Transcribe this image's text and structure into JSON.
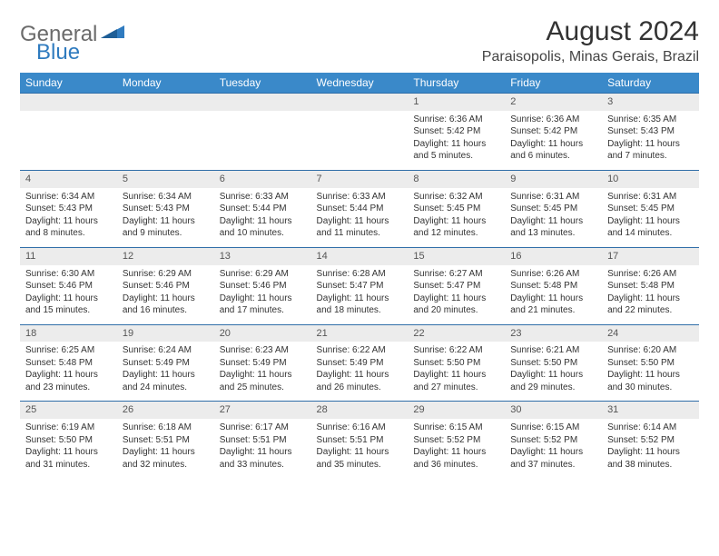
{
  "logo": {
    "word1": "General",
    "word2": "Blue",
    "color1": "#6b6b6b",
    "color2": "#2f7bbf"
  },
  "title": "August 2024",
  "location": "Paraisopolis, Minas Gerais, Brazil",
  "header_bg": "#3a89c9",
  "header_fg": "#ffffff",
  "daynum_bg": "#ececec",
  "row_border": "#2f6ea8",
  "weekdays": [
    "Sunday",
    "Monday",
    "Tuesday",
    "Wednesday",
    "Thursday",
    "Friday",
    "Saturday"
  ],
  "weeks": [
    [
      null,
      null,
      null,
      null,
      {
        "n": "1",
        "sr": "6:36 AM",
        "ss": "5:42 PM",
        "dl": "11 hours and 5 minutes."
      },
      {
        "n": "2",
        "sr": "6:36 AM",
        "ss": "5:42 PM",
        "dl": "11 hours and 6 minutes."
      },
      {
        "n": "3",
        "sr": "6:35 AM",
        "ss": "5:43 PM",
        "dl": "11 hours and 7 minutes."
      }
    ],
    [
      {
        "n": "4",
        "sr": "6:34 AM",
        "ss": "5:43 PM",
        "dl": "11 hours and 8 minutes."
      },
      {
        "n": "5",
        "sr": "6:34 AM",
        "ss": "5:43 PM",
        "dl": "11 hours and 9 minutes."
      },
      {
        "n": "6",
        "sr": "6:33 AM",
        "ss": "5:44 PM",
        "dl": "11 hours and 10 minutes."
      },
      {
        "n": "7",
        "sr": "6:33 AM",
        "ss": "5:44 PM",
        "dl": "11 hours and 11 minutes."
      },
      {
        "n": "8",
        "sr": "6:32 AM",
        "ss": "5:45 PM",
        "dl": "11 hours and 12 minutes."
      },
      {
        "n": "9",
        "sr": "6:31 AM",
        "ss": "5:45 PM",
        "dl": "11 hours and 13 minutes."
      },
      {
        "n": "10",
        "sr": "6:31 AM",
        "ss": "5:45 PM",
        "dl": "11 hours and 14 minutes."
      }
    ],
    [
      {
        "n": "11",
        "sr": "6:30 AM",
        "ss": "5:46 PM",
        "dl": "11 hours and 15 minutes."
      },
      {
        "n": "12",
        "sr": "6:29 AM",
        "ss": "5:46 PM",
        "dl": "11 hours and 16 minutes."
      },
      {
        "n": "13",
        "sr": "6:29 AM",
        "ss": "5:46 PM",
        "dl": "11 hours and 17 minutes."
      },
      {
        "n": "14",
        "sr": "6:28 AM",
        "ss": "5:47 PM",
        "dl": "11 hours and 18 minutes."
      },
      {
        "n": "15",
        "sr": "6:27 AM",
        "ss": "5:47 PM",
        "dl": "11 hours and 20 minutes."
      },
      {
        "n": "16",
        "sr": "6:26 AM",
        "ss": "5:48 PM",
        "dl": "11 hours and 21 minutes."
      },
      {
        "n": "17",
        "sr": "6:26 AM",
        "ss": "5:48 PM",
        "dl": "11 hours and 22 minutes."
      }
    ],
    [
      {
        "n": "18",
        "sr": "6:25 AM",
        "ss": "5:48 PM",
        "dl": "11 hours and 23 minutes."
      },
      {
        "n": "19",
        "sr": "6:24 AM",
        "ss": "5:49 PM",
        "dl": "11 hours and 24 minutes."
      },
      {
        "n": "20",
        "sr": "6:23 AM",
        "ss": "5:49 PM",
        "dl": "11 hours and 25 minutes."
      },
      {
        "n": "21",
        "sr": "6:22 AM",
        "ss": "5:49 PM",
        "dl": "11 hours and 26 minutes."
      },
      {
        "n": "22",
        "sr": "6:22 AM",
        "ss": "5:50 PM",
        "dl": "11 hours and 27 minutes."
      },
      {
        "n": "23",
        "sr": "6:21 AM",
        "ss": "5:50 PM",
        "dl": "11 hours and 29 minutes."
      },
      {
        "n": "24",
        "sr": "6:20 AM",
        "ss": "5:50 PM",
        "dl": "11 hours and 30 minutes."
      }
    ],
    [
      {
        "n": "25",
        "sr": "6:19 AM",
        "ss": "5:50 PM",
        "dl": "11 hours and 31 minutes."
      },
      {
        "n": "26",
        "sr": "6:18 AM",
        "ss": "5:51 PM",
        "dl": "11 hours and 32 minutes."
      },
      {
        "n": "27",
        "sr": "6:17 AM",
        "ss": "5:51 PM",
        "dl": "11 hours and 33 minutes."
      },
      {
        "n": "28",
        "sr": "6:16 AM",
        "ss": "5:51 PM",
        "dl": "11 hours and 35 minutes."
      },
      {
        "n": "29",
        "sr": "6:15 AM",
        "ss": "5:52 PM",
        "dl": "11 hours and 36 minutes."
      },
      {
        "n": "30",
        "sr": "6:15 AM",
        "ss": "5:52 PM",
        "dl": "11 hours and 37 minutes."
      },
      {
        "n": "31",
        "sr": "6:14 AM",
        "ss": "5:52 PM",
        "dl": "11 hours and 38 minutes."
      }
    ]
  ],
  "labels": {
    "sunrise": "Sunrise:",
    "sunset": "Sunset:",
    "daylight": "Daylight:"
  }
}
